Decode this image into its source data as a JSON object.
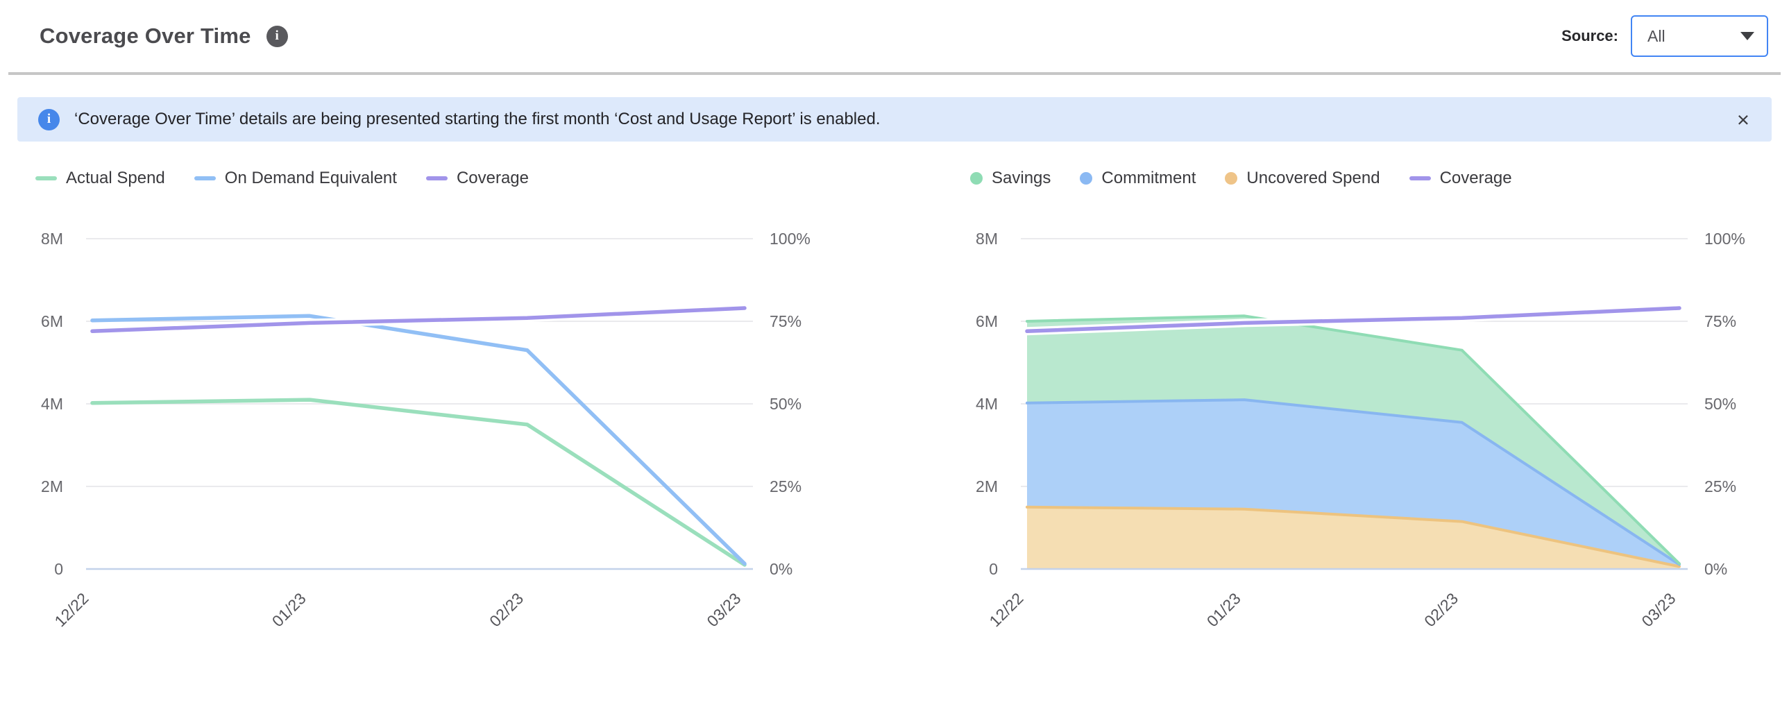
{
  "header": {
    "title": "Coverage Over Time",
    "info_icon_glyph": "i",
    "source_label": "Source:",
    "source_value": "All"
  },
  "banner": {
    "info_icon_glyph": "i",
    "text": "‘Coverage Over Time’ details are being presented starting the first month ‘Cost and Usage Report’ is enabled.",
    "close_glyph": "×"
  },
  "colors": {
    "accent_blue": "#4285f4",
    "banner_bg": "#dde9fb",
    "banner_icon_bg": "#4687ea",
    "divider": "#c6c6c6",
    "gridline": "#e3e3e7",
    "axis_line": "#c3d2ea",
    "tick_text": "#67676c",
    "x_tick_text": "#55555a",
    "series_green": "#9adfbc",
    "series_blue": "#91bff5",
    "series_purple": "#a194ea",
    "fill_green": "#b9e8cf",
    "fill_blue": "#add0f8",
    "fill_orange": "#f5deb3",
    "edge_green": "#8fdcb4",
    "edge_blue": "#88b6f0",
    "edge_orange": "#edc37f"
  },
  "chart_data": [
    {
      "type": "line",
      "categories": [
        "12/22",
        "01/23",
        "02/23",
        "03/23"
      ],
      "series": [
        {
          "name": "Actual Spend",
          "kind": "line",
          "axis": "left",
          "color": "#9adfbc",
          "values_millions": [
            4.02,
            4.1,
            3.5,
            0.1
          ]
        },
        {
          "name": "On Demand Equivalent",
          "kind": "line",
          "axis": "left",
          "color": "#91bff5",
          "values_millions": [
            6.02,
            6.13,
            5.3,
            0.13
          ]
        },
        {
          "name": "Coverage",
          "kind": "line",
          "axis": "right",
          "color": "#a194ea",
          "values_percent": [
            72,
            74.5,
            76,
            79
          ]
        }
      ],
      "left_axis": {
        "ticks": [
          "0",
          "2M",
          "4M",
          "6M",
          "8M"
        ],
        "min": 0,
        "max_millions": 8
      },
      "right_axis": {
        "ticks": [
          "0%",
          "25%",
          "50%",
          "75%",
          "100%"
        ],
        "min": 0,
        "max_percent": 100
      },
      "grid": true,
      "legend_position": "top"
    },
    {
      "type": "area",
      "stacked": true,
      "categories": [
        "12/22",
        "01/23",
        "02/23",
        "03/23"
      ],
      "series": [
        {
          "name": "Savings",
          "kind": "area",
          "axis": "left",
          "color": "#8fdcb4",
          "fill": "#b9e8cf",
          "edge": "#8fdcb4",
          "stack_order": 3,
          "values_millions": [
            1.98,
            2.03,
            1.75,
            0.02
          ]
        },
        {
          "name": "Commitment",
          "kind": "area",
          "axis": "left",
          "color": "#8bb9f3",
          "fill": "#add0f8",
          "edge": "#88b6f0",
          "stack_order": 2,
          "values_millions": [
            2.52,
            2.65,
            2.4,
            0.05
          ]
        },
        {
          "name": "Uncovered Spend",
          "kind": "area",
          "axis": "left",
          "color": "#efc488",
          "fill": "#f5deb3",
          "edge": "#edc37f",
          "stack_order": 1,
          "values_millions": [
            1.5,
            1.45,
            1.15,
            0.06
          ]
        },
        {
          "name": "Coverage",
          "kind": "line",
          "axis": "right",
          "color": "#a194ea",
          "values_percent": [
            72,
            74.5,
            76,
            79
          ]
        }
      ],
      "left_axis": {
        "ticks": [
          "0",
          "2M",
          "4M",
          "6M",
          "8M"
        ],
        "min": 0,
        "max_millions": 8
      },
      "right_axis": {
        "ticks": [
          "0%",
          "25%",
          "50%",
          "75%",
          "100%"
        ],
        "min": 0,
        "max_percent": 100
      },
      "grid": true,
      "legend_position": "top"
    }
  ]
}
